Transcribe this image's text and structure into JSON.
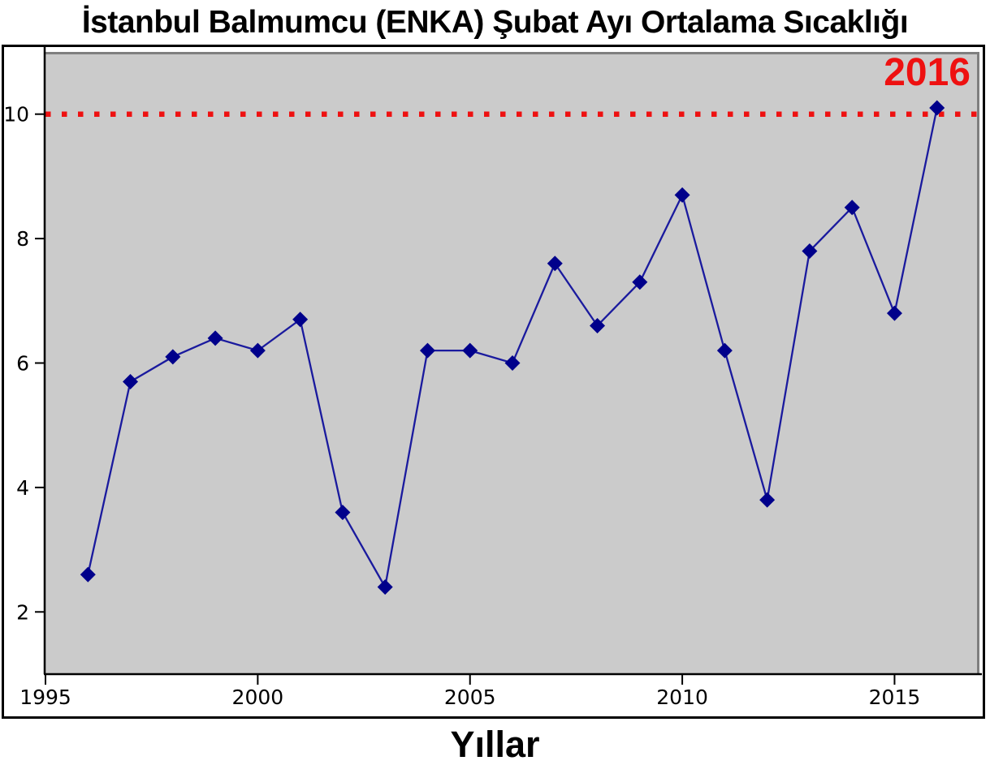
{
  "chart_data": {
    "type": "line",
    "title": "İstanbul Balmumcu (ENKA) Şubat Ayı Ortalama Sıcaklığı",
    "xlabel": "Yıllar",
    "ylabel": "",
    "x": [
      1996,
      1997,
      1998,
      1999,
      2000,
      2001,
      2002,
      2003,
      2004,
      2005,
      2006,
      2007,
      2008,
      2009,
      2010,
      2011,
      2012,
      2013,
      2014,
      2015,
      2016
    ],
    "values": [
      2.6,
      5.7,
      6.1,
      6.4,
      6.2,
      6.7,
      3.6,
      2.4,
      6.2,
      6.2,
      6.0,
      7.6,
      6.6,
      7.3,
      8.7,
      6.2,
      3.8,
      7.8,
      8.5,
      6.8,
      10.1
    ],
    "x_ticks": [
      "1995",
      "2000",
      "2005",
      "2010",
      "2015"
    ],
    "x_tick_values": [
      1995,
      2000,
      2005,
      2010,
      2015
    ],
    "y_ticks": [
      "2",
      "4",
      "6",
      "8",
      "10"
    ],
    "y_tick_values": [
      2,
      4,
      6,
      8,
      10
    ],
    "xlim": [
      1995,
      2017
    ],
    "ylim": [
      1,
      11
    ],
    "grid": false,
    "legend_position": "none",
    "reference_line": {
      "y": 10,
      "label": "2016",
      "style": "dotted"
    },
    "marker": "diamond",
    "colors": {
      "line": "#1a1a9e",
      "marker": "#00008b",
      "reference": "#ee1111",
      "annotation": "#ee1111",
      "plot_bg": "#cbcbcb",
      "spine_dark": "#000000",
      "spine_light": "#7f7f7f",
      "tick_label": "#000000"
    }
  }
}
